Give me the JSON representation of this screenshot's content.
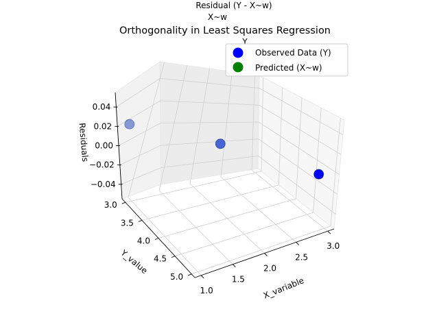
{
  "chart_data": {
    "type": "scatter",
    "title": "Orthogonality in Least Squares Regression",
    "xlabel": "X_variable",
    "ylabel": "Y_value",
    "zlabel": "Residuals",
    "xlim": [
      0.9,
      3.1
    ],
    "ylim": [
      2.9,
      5.1
    ],
    "zlim": [
      -0.055,
      0.055
    ],
    "x_ticks": [
      "1.0",
      "1.5",
      "2.0",
      "2.5",
      "3.0"
    ],
    "y_ticks": [
      "3.0",
      "3.5",
      "4.0",
      "4.5",
      "5.0"
    ],
    "z_ticks": [
      "0.04",
      "0.02",
      "0.00",
      "−0.02",
      "−0.04"
    ],
    "grid": true,
    "legend_position": "top-right",
    "series": [
      {
        "name": "Observed Data (Y)",
        "color": "#0000ff",
        "points": [
          {
            "x": 1,
            "y": 3,
            "z": 0
          },
          {
            "x": 2,
            "y": 4,
            "z": 0
          },
          {
            "x": 3,
            "y": 5,
            "z": 0
          }
        ]
      },
      {
        "name": "Predicted (X~w)",
        "color": "#008000",
        "points": []
      }
    ],
    "annotations": [
      {
        "text": "Residual (Y - X~w)",
        "color": "#ff0000"
      },
      {
        "text": "X~w",
        "color": "#008000"
      },
      {
        "text": "Y",
        "color": "#0000ff"
      }
    ]
  }
}
